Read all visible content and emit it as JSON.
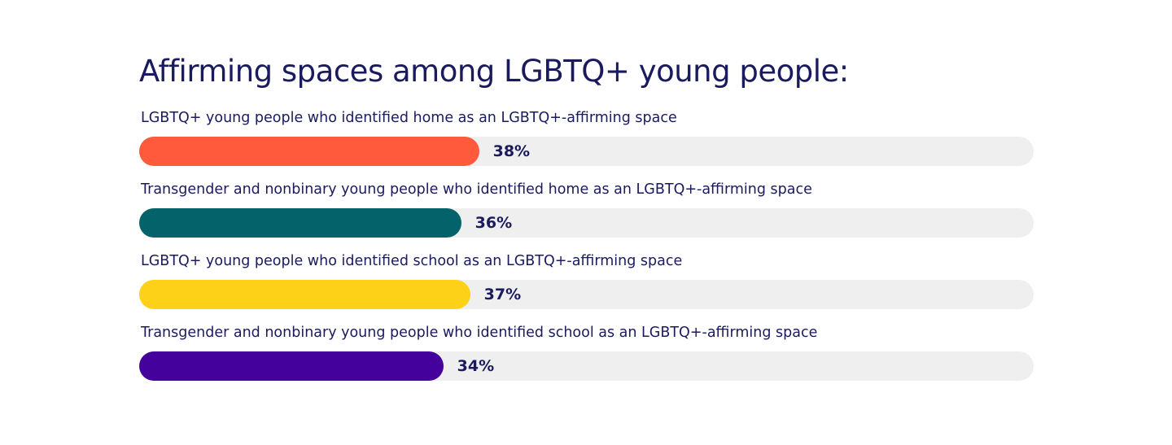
{
  "chart_data": {
    "type": "bar",
    "orientation": "horizontal",
    "title": "Affirming spaces among LGBTQ+ young people:",
    "categories": [
      "LGBTQ+ young people who identified home as an LGBTQ+-affirming space",
      "Transgender and nonbinary young people who identified home as an LGBTQ+-affirming space",
      "LGBTQ+ young people who identified school as an LGBTQ+-affirming space",
      "Transgender and nonbinary young people who identified school as an LGBTQ+-affirming space"
    ],
    "values": [
      38,
      36,
      37,
      34
    ],
    "value_labels": [
      "38%",
      "36%",
      "37%",
      "34%"
    ],
    "colors": [
      "#ff5a3c",
      "#04636a",
      "#fdd117",
      "#44019b"
    ],
    "track_color": "#efefef",
    "xlim": [
      0,
      100
    ],
    "grid": false,
    "legend": "none"
  }
}
